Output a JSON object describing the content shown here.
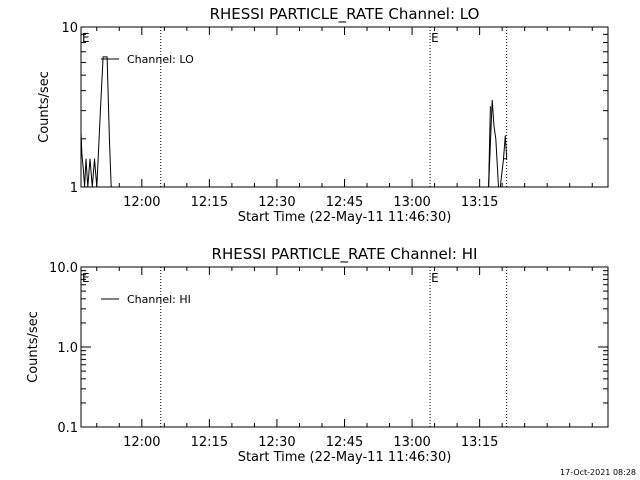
{
  "chart_data": [
    {
      "type": "line",
      "title": "RHESSI PARTICLE_RATE Channel: LO",
      "xlabel": "Start Time (22-May-11 11:46:30)",
      "ylabel": "Counts/sec",
      "x_unit": "minutes of day (22-May-11)",
      "xlim": [
        706.5,
        823.5
      ],
      "ylim": [
        1,
        10
      ],
      "yscale": "log",
      "x_ticks": [
        {
          "value": 720,
          "label": "12:00"
        },
        {
          "value": 735,
          "label": "12:15"
        },
        {
          "value": 750,
          "label": "12:30"
        },
        {
          "value": 765,
          "label": "12:45"
        },
        {
          "value": 780,
          "label": "13:00"
        },
        {
          "value": 795,
          "label": "13:15"
        }
      ],
      "y_ticks": [
        {
          "value": 1,
          "label": "1"
        },
        {
          "value": 10,
          "label": "10"
        }
      ],
      "legend": {
        "position": "top-left",
        "entries": [
          "Channel: LO"
        ]
      },
      "event_markers": [
        {
          "x": 706.5,
          "label": "E",
          "dotted_line": false
        },
        {
          "x": 724.2,
          "label": "",
          "dotted_line": true
        },
        {
          "x": 784.0,
          "label": "E",
          "dotted_line": true
        },
        {
          "x": 801.0,
          "label": "",
          "dotted_line": true
        }
      ],
      "series": [
        {
          "name": "Channel: LO",
          "x": [
            706.5,
            706.7,
            707.0,
            707.3,
            707.6,
            708.0,
            708.5,
            709.0,
            709.5,
            710.0,
            710.8,
            711.4,
            712.3,
            712.8,
            713.2,
            713.6,
            714.2,
            797.0,
            797.8,
            798.2,
            798.6,
            799.2,
            799.6,
            800.3,
            801.0
          ],
          "y": [
            2.2,
            1.6,
            1.3,
            1.0,
            1.5,
            1.0,
            1.5,
            1.0,
            1.5,
            1.0,
            3.0,
            6.5,
            6.5,
            2.0,
            1.0,
            1.0,
            1.0,
            1.0,
            3.5,
            2.4,
            2.0,
            1.0,
            1.0,
            1.5,
            1.5
          ]
        },
        {
          "name": "",
          "x": [
            797.0,
            797.4
          ],
          "y": [
            1.0,
            3.2
          ]
        },
        {
          "name": "",
          "x": [
            800.3,
            800.7,
            801.0
          ],
          "y": [
            1.5,
            2.1,
            1.5
          ]
        }
      ]
    },
    {
      "type": "line",
      "title": "RHESSI PARTICLE_RATE Channel: HI",
      "xlabel": "Start Time (22-May-11 11:46:30)",
      "ylabel": "Counts/sec",
      "x_unit": "minutes of day (22-May-11)",
      "xlim": [
        706.5,
        823.5
      ],
      "ylim": [
        0.1,
        10
      ],
      "yscale": "log",
      "x_ticks": [
        {
          "value": 720,
          "label": "12:00"
        },
        {
          "value": 735,
          "label": "12:15"
        },
        {
          "value": 750,
          "label": "12:30"
        },
        {
          "value": 765,
          "label": "12:45"
        },
        {
          "value": 780,
          "label": "13:00"
        },
        {
          "value": 795,
          "label": "13:15"
        }
      ],
      "y_ticks": [
        {
          "value": 0.1,
          "label": "0.1"
        },
        {
          "value": 1,
          "label": "1.0"
        },
        {
          "value": 10,
          "label": "10.0"
        }
      ],
      "legend": {
        "position": "top-left",
        "entries": [
          "Channel: HI"
        ]
      },
      "event_markers": [
        {
          "x": 706.5,
          "label": "E",
          "dotted_line": false
        },
        {
          "x": 724.2,
          "label": "",
          "dotted_line": true
        },
        {
          "x": 784.0,
          "label": "E",
          "dotted_line": true
        },
        {
          "x": 801.0,
          "label": "",
          "dotted_line": true
        }
      ],
      "series": [
        {
          "name": "Channel: HI",
          "x": [],
          "y": []
        }
      ]
    }
  ],
  "footer": {
    "date_stamp": "17-Oct-2021 08:28"
  }
}
